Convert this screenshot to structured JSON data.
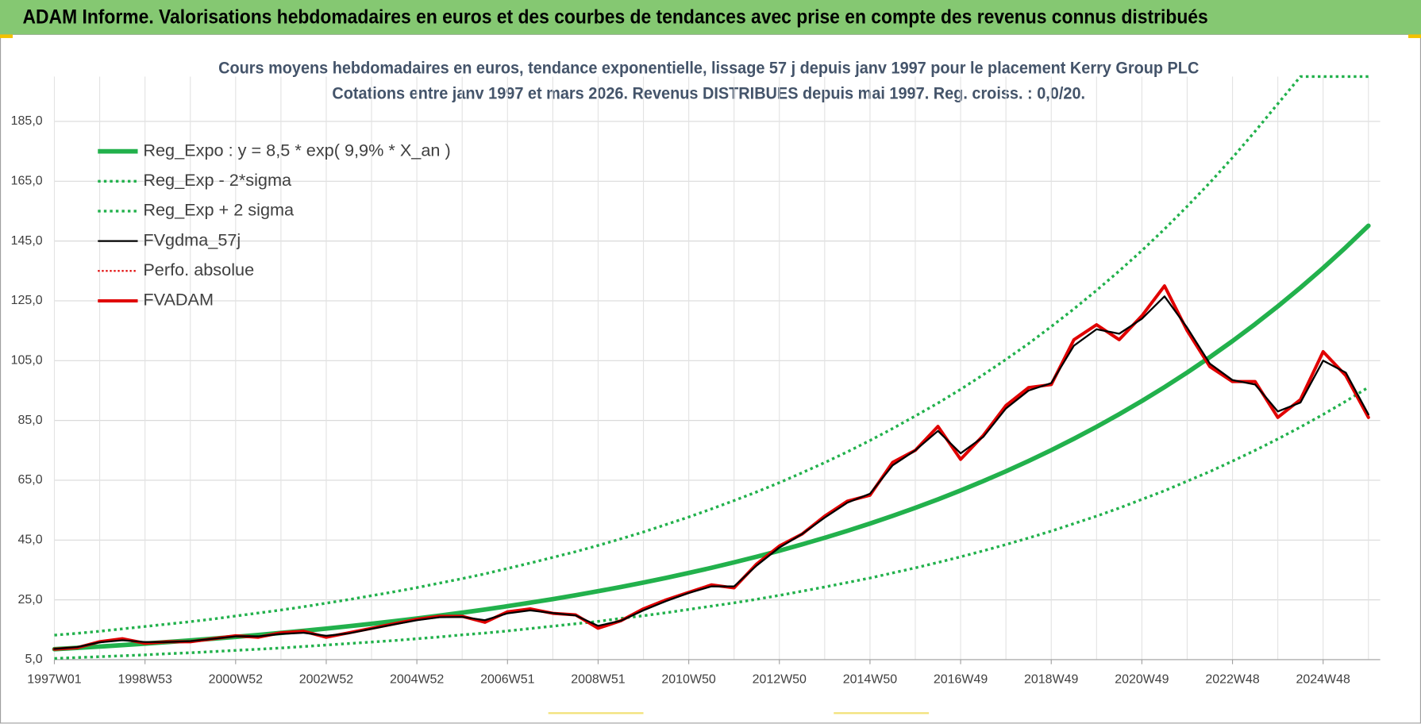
{
  "chart_data": {
    "type": "line",
    "title": "ADAM Informe. Valorisations hebdomadaires en euros et des courbes de tendances avec prise en compte des revenus connus distribués",
    "subtitle": [
      "Cours moyens hebdomadaires en euros, tendance exponentielle, lissage 57 j depuis janv 1997 pour le placement Kerry Group PLC",
      "Cotations entre janv 1997 et mars 2026. Revenus DISTRIBUES depuis mai 1997. Reg. croiss. : 0,0/20."
    ],
    "categories": [
      "1997W01",
      null,
      null,
      null,
      "1998W53",
      null,
      null,
      null,
      "2000W52",
      null,
      null,
      null,
      "2002W52",
      null,
      null,
      null,
      "2004W52",
      null,
      null,
      null,
      "2006W51",
      null,
      null,
      null,
      "2008W51",
      null,
      null,
      null,
      "2010W50",
      null,
      null,
      null,
      "2012W50",
      null,
      null,
      null,
      "2014W50",
      null,
      null,
      null,
      "2016W49",
      null,
      null,
      null,
      "2018W49",
      null,
      null,
      null,
      "2020W49",
      null,
      null,
      null,
      "2022W48",
      null,
      null,
      null,
      "2024W48",
      null,
      null
    ],
    "ylim": [
      5,
      200
    ],
    "yticks": [
      {
        "value": 5,
        "label": "5,0"
      },
      {
        "value": 25,
        "label": "25,0"
      },
      {
        "value": 45,
        "label": "45,0"
      },
      {
        "value": 65,
        "label": "65,0"
      },
      {
        "value": 85,
        "label": "85,0"
      },
      {
        "value": 105,
        "label": "105,0"
      },
      {
        "value": 125,
        "label": "125,0"
      },
      {
        "value": 145,
        "label": "145,0"
      },
      {
        "value": 165,
        "label": "165,0"
      },
      {
        "value": 185,
        "label": "185,0"
      }
    ],
    "grid": true,
    "legend": "top-left",
    "series": [
      {
        "name": "Reg_Expo : y = 8,5 * exp( 9,9% *  X_an )",
        "color": "#22b14c",
        "dash": "solid",
        "width": 5,
        "values": [
          8.5,
          8.93,
          9.38,
          9.86,
          10.36,
          10.89,
          11.44,
          12.02,
          12.63,
          13.27,
          13.95,
          14.65,
          15.4,
          16.18,
          17.0,
          17.86,
          18.77,
          19.72,
          20.72,
          21.77,
          22.88,
          24.04,
          25.26,
          26.54,
          27.89,
          29.31,
          30.79,
          32.36,
          34.0,
          35.72,
          37.54,
          39.44,
          41.44,
          43.55,
          45.76,
          48.08,
          50.52,
          53.08,
          55.78,
          58.61,
          61.58,
          64.71,
          67.99,
          71.44,
          75.07,
          78.88,
          82.88,
          87.09,
          91.51,
          96.15,
          101.03,
          106.16,
          111.55,
          117.21,
          123.16,
          129.41,
          135.98,
          142.88,
          150.13
        ]
      },
      {
        "name": "Reg_Exp - 2*sigma",
        "color": "#22b14c",
        "dash": "dotted",
        "width": 3,
        "values": [
          5.4,
          5.7,
          6.0,
          6.3,
          6.6,
          7.0,
          7.3,
          7.7,
          8.1,
          8.5,
          8.9,
          9.4,
          9.9,
          10.4,
          10.9,
          11.4,
          12.0,
          12.6,
          13.3,
          13.9,
          14.6,
          15.4,
          16.2,
          17.0,
          17.8,
          18.8,
          19.7,
          20.7,
          21.8,
          22.9,
          24.0,
          25.2,
          26.5,
          27.9,
          29.3,
          30.8,
          32.3,
          34.0,
          35.7,
          37.5,
          39.4,
          41.4,
          43.5,
          45.7,
          48.0,
          50.5,
          53.0,
          55.7,
          58.6,
          61.5,
          64.7,
          67.9,
          71.4,
          75.0,
          78.8,
          82.8,
          87.0,
          91.4,
          96.1
        ]
      },
      {
        "name": "Reg_Exp + 2 sigma",
        "color": "#22b14c",
        "dash": "dotted",
        "width": 3,
        "values": [
          13.2,
          13.8,
          14.5,
          15.3,
          16.1,
          16.9,
          17.7,
          18.6,
          19.6,
          20.6,
          21.6,
          22.7,
          23.9,
          25.1,
          26.4,
          27.7,
          29.1,
          30.6,
          32.1,
          33.7,
          35.5,
          37.3,
          39.2,
          41.1,
          43.2,
          45.4,
          47.7,
          50.2,
          52.7,
          55.4,
          58.2,
          61.1,
          64.2,
          67.5,
          70.9,
          74.5,
          78.3,
          82.3,
          86.5,
          90.8,
          95.4,
          100.3,
          105.4,
          110.7,
          116.4,
          122.3,
          128.5,
          135.0,
          141.8,
          149.0,
          156.6,
          164.5,
          172.9,
          181.7,
          190.9,
          200,
          200,
          200,
          200
        ]
      },
      {
        "name": "FVgdma_57j",
        "color": "#000000",
        "dash": "solid",
        "width": 2,
        "values": [
          8.6,
          9.2,
          10.8,
          11.5,
          10.9,
          10.9,
          11.2,
          12,
          12.8,
          12.8,
          13.6,
          14,
          13,
          13.8,
          15.3,
          16.8,
          18.2,
          19.2,
          19.3,
          18.2,
          20.5,
          21.5,
          20.6,
          19.8,
          16.3,
          18,
          21.5,
          24.6,
          27.3,
          29.5,
          29.5,
          36.5,
          42.5,
          47,
          52.5,
          57.5,
          60.5,
          70,
          75,
          81.5,
          74,
          79.5,
          89,
          95,
          97.5,
          110,
          115.5,
          114,
          119,
          126.5,
          116,
          104,
          98.5,
          97,
          88,
          91,
          105,
          101,
          87
        ]
      },
      {
        "name": "Perfo. absolue",
        "color": "#e00000",
        "dash": "dotted",
        "width": 2
      },
      {
        "name": "FVADAM",
        "color": "#e00000",
        "dash": "solid",
        "width": 3.5,
        "values": [
          8.5,
          9,
          11,
          12,
          10.5,
          11,
          11,
          12,
          13,
          12.5,
          14,
          14.5,
          12.5,
          14,
          15.5,
          17,
          18.5,
          19.5,
          19.5,
          17.5,
          21,
          22,
          20.5,
          20,
          15.5,
          18,
          22,
          25,
          27.5,
          30,
          29,
          37,
          43,
          47,
          53,
          58,
          60,
          71,
          75,
          83,
          72,
          80,
          90,
          96,
          97,
          112,
          117,
          112,
          120,
          130,
          115,
          103,
          98,
          98,
          86,
          92,
          108,
          100,
          86
        ]
      }
    ]
  }
}
